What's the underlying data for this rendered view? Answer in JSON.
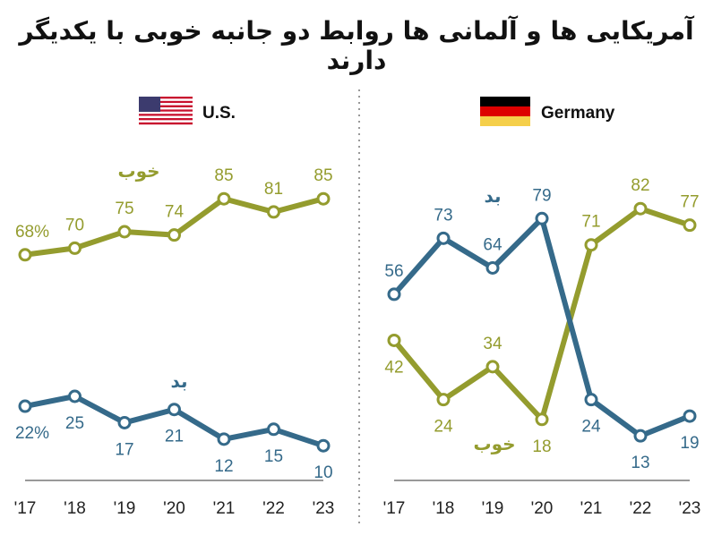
{
  "title": "آمریکایی ها و آلمانی ها روابط دو جانبه خوبی با یکدیگر دارند",
  "colors": {
    "good": "#949c2e",
    "bad": "#356a8a",
    "axis": "#999999",
    "divider": "#999999"
  },
  "chart_data": [
    {
      "type": "line",
      "panel": "U.S.",
      "flag_icon": "us-flag-icon",
      "categories": [
        "'17",
        "'18",
        "'19",
        "'20",
        "'21",
        "'22",
        "'23"
      ],
      "ylim": [
        0,
        100
      ],
      "grid": false,
      "series": [
        {
          "name": "خوب",
          "key": "good",
          "values": [
            68,
            70,
            75,
            74,
            85,
            81,
            85
          ],
          "labels": [
            "68%",
            "70",
            "75",
            "74",
            "85",
            "81",
            "85"
          ],
          "label_pos": [
            "above",
            "above",
            "above",
            "above",
            "above",
            "above",
            "above"
          ]
        },
        {
          "name": "بد",
          "key": "bad",
          "values": [
            22,
            25,
            17,
            21,
            12,
            15,
            10
          ],
          "labels": [
            "22%",
            "25",
            "17",
            "21",
            "12",
            "15",
            "10"
          ],
          "label_pos": [
            "below",
            "below",
            "below",
            "below",
            "below",
            "below",
            "below"
          ]
        }
      ]
    },
    {
      "type": "line",
      "panel": "Germany",
      "flag_icon": "germany-flag-icon",
      "categories": [
        "'17",
        "'18",
        "'19",
        "'20",
        "'21",
        "'22",
        "'23"
      ],
      "ylim": [
        0,
        100
      ],
      "grid": false,
      "series": [
        {
          "name": "خوب",
          "key": "good",
          "values": [
            42,
            24,
            34,
            18,
            71,
            82,
            77
          ],
          "labels": [
            "42",
            "24",
            "34",
            "18",
            "71",
            "82",
            "77"
          ],
          "label_pos": [
            "below",
            "below",
            "above",
            "below",
            "above",
            "above",
            "above"
          ]
        },
        {
          "name": "بد",
          "key": "bad",
          "values": [
            56,
            73,
            64,
            79,
            24,
            13,
            19
          ],
          "labels": [
            "56",
            "73",
            "64",
            "79",
            "24",
            "13",
            "19"
          ],
          "label_pos": [
            "above",
            "above",
            "above",
            "above",
            "below",
            "below",
            "below"
          ]
        }
      ]
    }
  ]
}
